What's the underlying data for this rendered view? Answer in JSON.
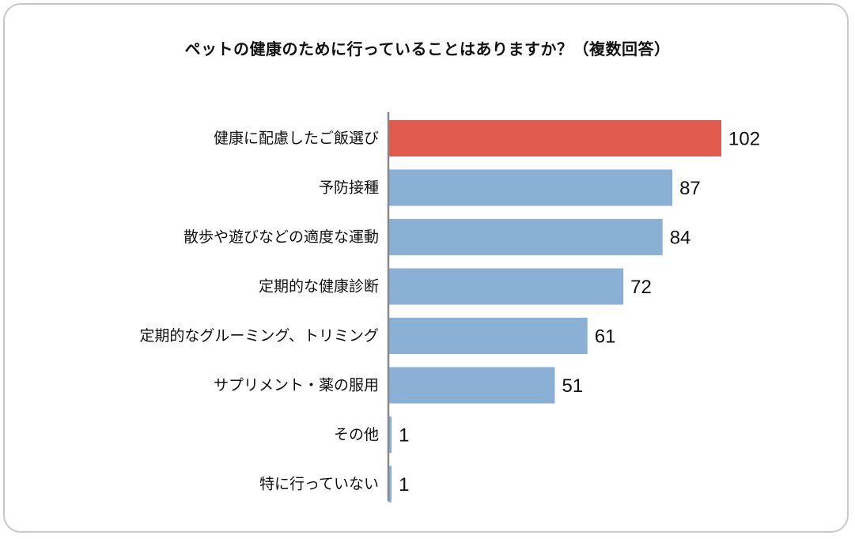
{
  "chart_data": {
    "type": "bar",
    "orientation": "horizontal",
    "title": "ペットの健康のために行っていることはありますか？（複数回答）",
    "categories": [
      "健康に配慮したご飯選び",
      "予防接種",
      "散歩や遊びなどの適度な運動",
      "定期的な健康診断",
      "定期的なグルーミング、トリミング",
      "サプリメント・薬の服用",
      "その他",
      "特に行っていない"
    ],
    "values": [
      102,
      87,
      84,
      72,
      61,
      51,
      1,
      1
    ],
    "xlim": [
      0,
      102
    ],
    "grid": false,
    "legend": "none",
    "highlight_index": 0,
    "colors": {
      "highlight": "#e05a4e",
      "default": "#8bb0d6",
      "axis": "#888888"
    }
  }
}
